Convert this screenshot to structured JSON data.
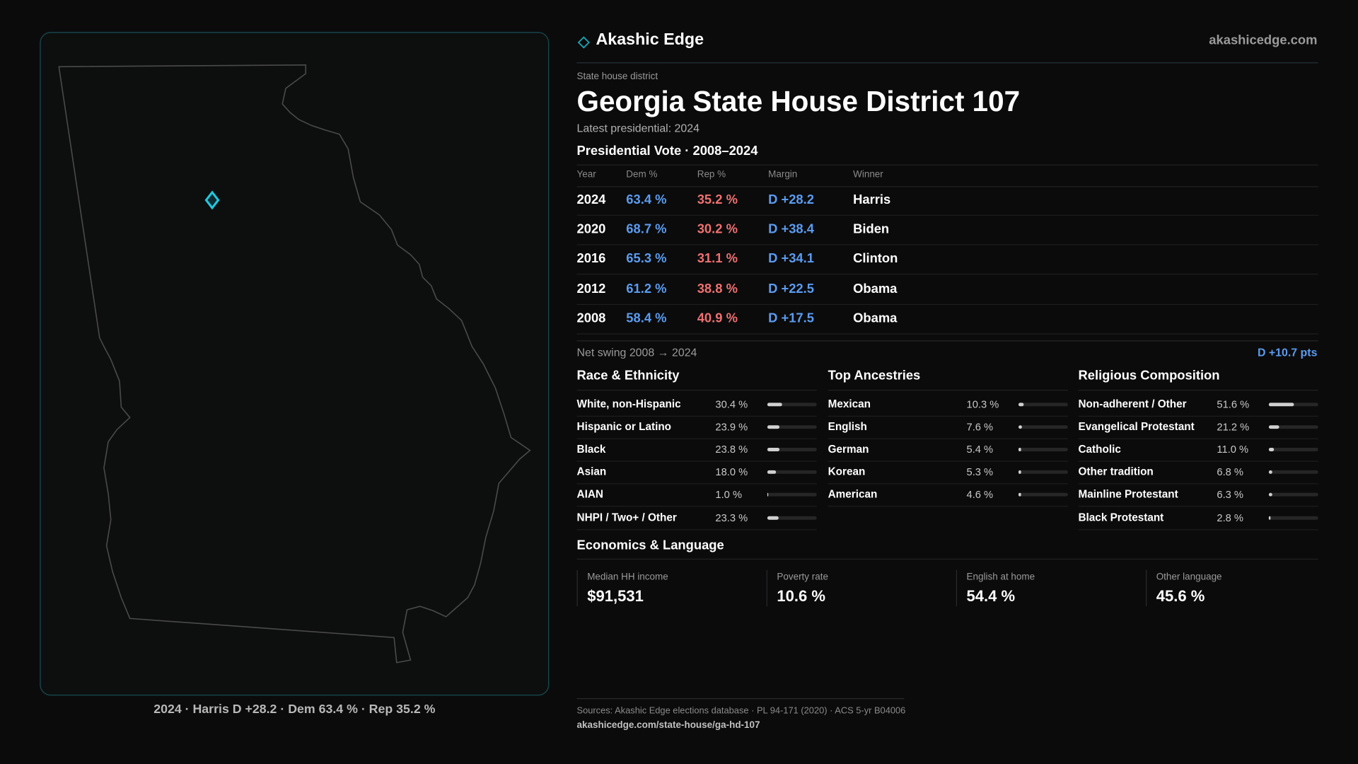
{
  "header": {
    "brand": "Akashic Edge",
    "site": "akashicedge.com"
  },
  "district": {
    "kicker": "State house district",
    "title": "Georgia State House District 107",
    "latest": "Latest presidential: 2024"
  },
  "map": {
    "caption": "2024 · Harris D +28.2 · Dem 63.4 % · Rep 35.2 %"
  },
  "vote_table": {
    "title": "Presidential Vote · 2008–2024",
    "columns": [
      "Year",
      "Dem %",
      "Rep %",
      "Margin",
      "Winner"
    ],
    "rows": [
      [
        "2024",
        "63.4 %",
        "35.2 %",
        "D +28.2",
        "Harris"
      ],
      [
        "2020",
        "68.7 %",
        "30.2 %",
        "D +38.4",
        "Biden"
      ],
      [
        "2016",
        "65.3 %",
        "31.1 %",
        "D +34.1",
        "Clinton"
      ],
      [
        "2012",
        "61.2 %",
        "38.8 %",
        "D +22.5",
        "Obama"
      ],
      [
        "2008",
        "58.4 %",
        "40.9 %",
        "D +17.5",
        "Obama"
      ]
    ]
  },
  "swing": {
    "label": "Net swing 2008 → 2024",
    "value": "D +10.7 pts"
  },
  "sections": [
    {
      "title": "Race & Ethnicity",
      "xlim": [
        0,
        100
      ],
      "categories": [
        "White, non-Hispanic",
        "Hispanic or Latino",
        "Black",
        "Asian",
        "AIAN",
        "NHPI / Two+ / Other"
      ],
      "values": [
        30.4,
        23.9,
        23.8,
        18.0,
        1.0,
        23.3
      ],
      "value_labels": [
        "30.4 %",
        "23.9 %",
        "23.8 %",
        "18.0 %",
        "1.0 %",
        "23.3 %"
      ]
    },
    {
      "title": "Top Ancestries",
      "xlim": [
        0,
        100
      ],
      "categories": [
        "Mexican",
        "English",
        "German",
        "Korean",
        "American"
      ],
      "values": [
        10.3,
        7.6,
        5.4,
        5.3,
        4.6
      ],
      "value_labels": [
        "10.3 %",
        "7.6 %",
        "5.4 %",
        "5.3 %",
        "4.6 %"
      ]
    },
    {
      "title": "Religious Composition",
      "xlim": [
        0,
        100
      ],
      "categories": [
        "Non-adherent / Other",
        "Evangelical Protestant",
        "Catholic",
        "Other tradition",
        "Mainline Protestant",
        "Black Protestant"
      ],
      "values": [
        51.6,
        21.2,
        11.0,
        6.8,
        6.3,
        2.8
      ],
      "value_labels": [
        "51.6 %",
        "21.2 %",
        "11.0 %",
        "6.8 %",
        "6.3 %",
        "2.8 %"
      ]
    }
  ],
  "economics": {
    "title": "Economics & Language",
    "items": [
      {
        "label": "Median HH income",
        "value": "$91,531"
      },
      {
        "label": "Poverty rate",
        "value": "10.6 %"
      },
      {
        "label": "English at home",
        "value": "54.4 %"
      },
      {
        "label": "Other language",
        "value": "45.6 %"
      }
    ]
  },
  "footer": {
    "sources": "Sources: Akashic Edge elections database · PL 94-171 (2020) · ACS 5-yr B04006",
    "url": "akashicedge.com/state-house/ga-hd-107"
  }
}
